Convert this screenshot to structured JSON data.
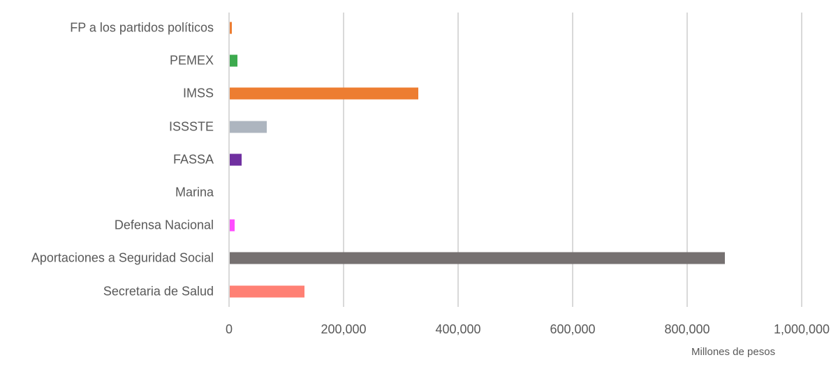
{
  "chart_data": {
    "type": "bar",
    "orientation": "horizontal",
    "title": "",
    "xlabel": "Millones de pesos",
    "ylabel": "",
    "xlim": [
      0,
      1000000
    ],
    "grid": true,
    "legend": null,
    "x_ticks": [
      "0",
      "200,000",
      "400,000",
      "600,000",
      "800,000",
      "1,000,000"
    ],
    "categories": [
      "FP a los partidos políticos",
      "PEMEX",
      "IMSS",
      "ISSSTE",
      "FASSA",
      "Marina",
      "Defensa Nacional",
      "Aportaciones a Seguridad Social",
      "Secretaria de Salud"
    ],
    "values": [
      4000,
      14000,
      329000,
      65000,
      21000,
      0,
      8000,
      865000,
      130000
    ],
    "colors": [
      "#ed7d31",
      "#3caa4e",
      "#ed7d31",
      "#adb5bf",
      "#7030a0",
      "#a5a5a5",
      "#ff4dff",
      "#767171",
      "#ff8074"
    ]
  },
  "axis": {
    "xlabel": "Millones de pesos",
    "ticks": [
      "0",
      "200,000",
      "400,000",
      "600,000",
      "800,000",
      "1,000,000"
    ]
  },
  "labels": {
    "c0": "FP a los partidos políticos",
    "c1": "PEMEX",
    "c2": "IMSS",
    "c3": "ISSSTE",
    "c4": "FASSA",
    "c5": "Marina",
    "c6": "Defensa Nacional",
    "c7": "Aportaciones a Seguridad Social",
    "c8": "Secretaria de Salud"
  }
}
